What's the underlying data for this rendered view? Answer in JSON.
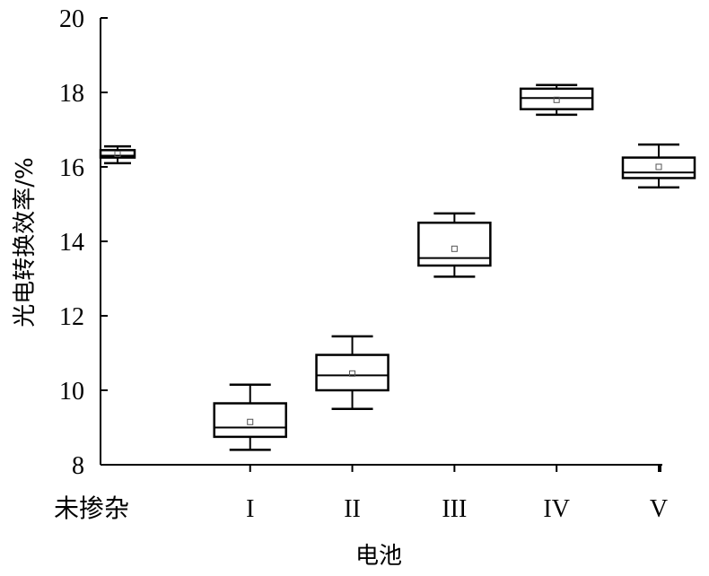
{
  "chart_data": {
    "type": "box",
    "title": "",
    "xlabel": "电池",
    "ylabel": "光电转换效率/%",
    "ylim": [
      8,
      20
    ],
    "yticks": [
      8,
      10,
      12,
      14,
      16,
      18,
      20
    ],
    "categories": [
      "未掺杂",
      "I",
      "II",
      "III",
      "IV",
      "V"
    ],
    "grid": false,
    "legend": "none",
    "boxes": [
      {
        "category": "未掺杂",
        "min": 16.1,
        "q1": 16.25,
        "median": 16.3,
        "q3": 16.45,
        "max": 16.55,
        "mean": 16.35
      },
      {
        "category": "I",
        "min": 8.4,
        "q1": 8.75,
        "median": 9.0,
        "q3": 9.65,
        "max": 10.15,
        "mean": 9.15
      },
      {
        "category": "II",
        "min": 9.5,
        "q1": 10.0,
        "median": 10.4,
        "q3": 10.95,
        "max": 11.45,
        "mean": 10.45
      },
      {
        "category": "III",
        "min": 13.05,
        "q1": 13.35,
        "median": 13.55,
        "q3": 14.5,
        "max": 14.75,
        "mean": 13.8
      },
      {
        "category": "IV",
        "min": 17.4,
        "q1": 17.55,
        "median": 17.85,
        "q3": 18.1,
        "max": 18.2,
        "mean": 17.8
      },
      {
        "category": "V",
        "min": 15.45,
        "q1": 15.7,
        "median": 15.85,
        "q3": 16.25,
        "max": 16.6,
        "mean": 16.0
      }
    ]
  }
}
